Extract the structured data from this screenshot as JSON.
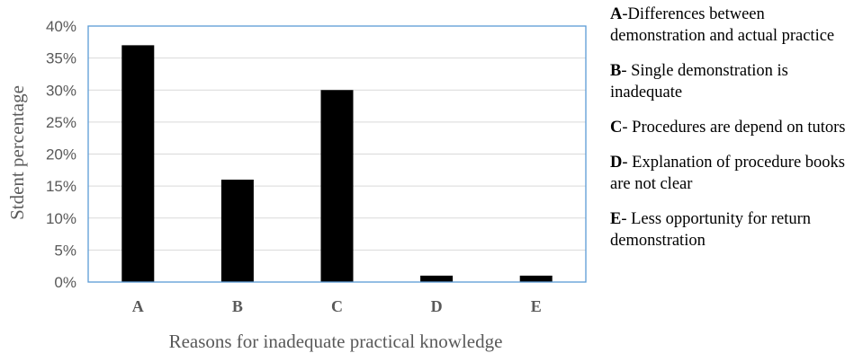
{
  "chart_data": {
    "type": "bar",
    "categories": [
      "A",
      "B",
      "C",
      "D",
      "E"
    ],
    "values": [
      37,
      16,
      30,
      1,
      1
    ],
    "ylabel": "Stdent percentage",
    "xlabel": "Reasons for inadequate practical knowledge",
    "ylim": [
      0,
      40
    ],
    "yticks": [
      "0%",
      "5%",
      "10%",
      "15%",
      "20%",
      "25%",
      "30%",
      "35%",
      "40%"
    ],
    "value_unit": "%",
    "grid": true,
    "bar_color": "#000000",
    "plot_border_color": "#5B9BD5"
  },
  "legend": [
    {
      "key": "A",
      "text": "-Differences between demonstration and actual practice"
    },
    {
      "key": "B",
      "text": "- Single demonstration is inadequate"
    },
    {
      "key": "C",
      "text": "- Procedures are depend on tutors"
    },
    {
      "key": "D",
      "text": "- Explanation of procedure books are not clear"
    },
    {
      "key": "E",
      "text": "- Less opportunity for return demonstration"
    }
  ]
}
